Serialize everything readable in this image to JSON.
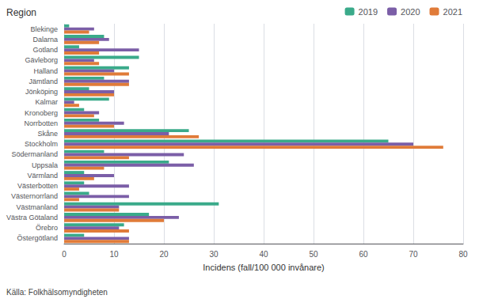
{
  "chart_data": {
    "type": "bar",
    "orientation": "horizontal",
    "xlabel": "Incidens (fall/100 000 invånare)",
    "ylabel": "Region",
    "annotations": [
      "Källa: Folkhälsomyndigheten"
    ],
    "categories": [
      "Blekinge",
      "Dalarna",
      "Gotland",
      "Gävleborg",
      "Halland",
      "Jämtland",
      "Jönköping",
      "Kalmar",
      "Kronoberg",
      "Norrbotten",
      "Skåne",
      "Stockholm",
      "Södermanland",
      "Uppsala",
      "Värmland",
      "Västerbotten",
      "Västernorrland",
      "Västmanland",
      "Västra Götaland",
      "Örebro",
      "Östergötland"
    ],
    "series": [
      {
        "name": "2019",
        "color": "#3aaa8a",
        "values": [
          1,
          8,
          3,
          15,
          13,
          8,
          5,
          9,
          4,
          7,
          25,
          65,
          8,
          21,
          4,
          4,
          5,
          31,
          17,
          12,
          4
        ]
      },
      {
        "name": "2020",
        "color": "#7b5ea7",
        "values": [
          6,
          9,
          15,
          6,
          10,
          13,
          10,
          2,
          7,
          12,
          21,
          70,
          24,
          26,
          10,
          13,
          13,
          11,
          23,
          11,
          13
        ]
      },
      {
        "name": "2021",
        "color": "#e07b39",
        "values": [
          5,
          7,
          7,
          7,
          13,
          13,
          10,
          3,
          6,
          10,
          27,
          76,
          13,
          8,
          6,
          3,
          3,
          11,
          20,
          13,
          13
        ]
      }
    ],
    "xlim": [
      0,
      80
    ],
    "xticks": [
      0,
      10,
      20,
      30,
      40,
      50,
      60,
      70,
      80
    ],
    "grid": true,
    "legend": "top-right"
  }
}
